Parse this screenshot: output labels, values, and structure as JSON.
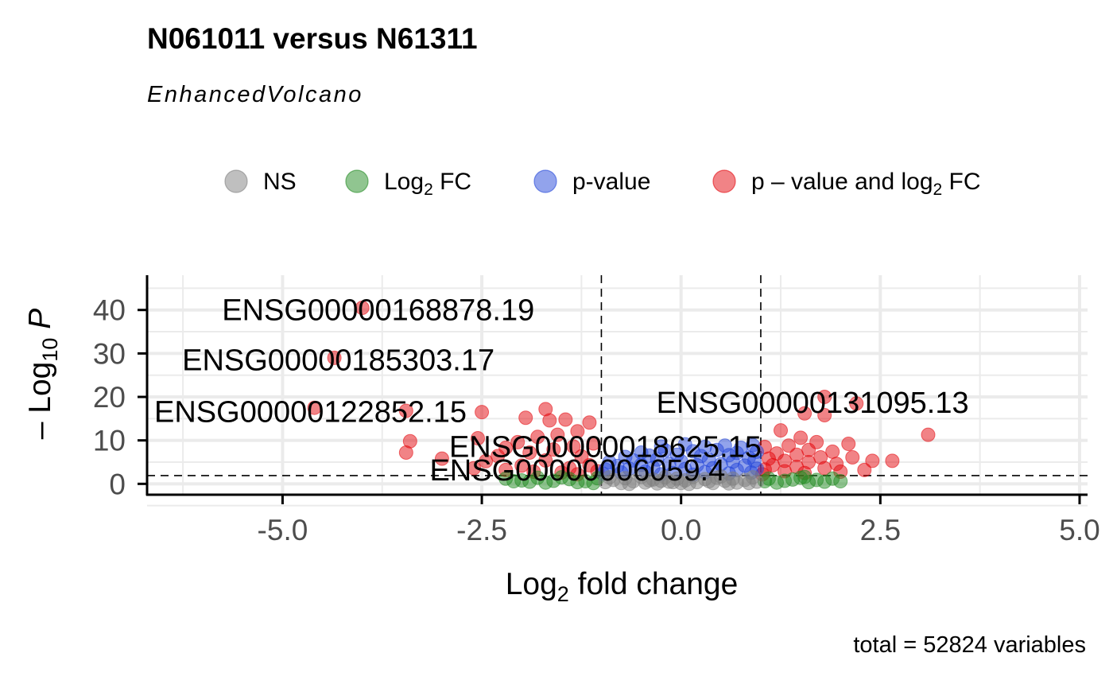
{
  "chart_data": {
    "type": "scatter",
    "title": "N061011 versus N61311",
    "subtitle": "EnhancedVolcano",
    "caption": "total = 52824 variables",
    "xlabel": {
      "base": "Log",
      "sub": "2",
      "rest": " fold change"
    },
    "ylabel": {
      "prefix": "– Log",
      "sub": "10",
      "rest": " P"
    },
    "xlim": [
      -6.7,
      5.1
    ],
    "ylim": [
      -2.5,
      48
    ],
    "x_ticks": [
      -5.0,
      -2.5,
      0.0,
      2.5,
      5.0
    ],
    "x_tick_labels": [
      "-5.0",
      "-2.5",
      "0.0",
      "2.5",
      "5.0"
    ],
    "y_ticks": [
      0,
      10,
      20,
      30,
      40
    ],
    "y_tick_labels": [
      "0",
      "10",
      "20",
      "30",
      "40"
    ],
    "fc_cutoff": 1.0,
    "p_cutoff_log10": 1.9,
    "grid": true,
    "legend_position": "top",
    "colors": {
      "NS": "#808080",
      "Log2FC": "#228B22",
      "pvalue": "#2547D9",
      "both": "#E3070D"
    },
    "legend": [
      {
        "key": "NS",
        "label": "NS",
        "color": "#808080"
      },
      {
        "key": "Log2FC",
        "label": "Log",
        "sub": "2",
        "rest": " FC",
        "color": "#228B22"
      },
      {
        "key": "pvalue",
        "label": "p-value",
        "color": "#2547D9"
      },
      {
        "key": "both",
        "label": "p – value and log",
        "sub": "2",
        "rest": " FC",
        "color": "#E3070D"
      }
    ],
    "series": [
      {
        "key": "both",
        "points": [
          [
            -4.0,
            40.5
          ],
          [
            -4.35,
            29
          ],
          [
            -4.6,
            17.5
          ],
          [
            -3.45,
            16.8
          ],
          [
            -2.5,
            16.5
          ],
          [
            -3.4,
            9.8
          ],
          [
            -3.45,
            7.2
          ],
          [
            -3.0,
            5.8
          ],
          [
            -2.55,
            10.5
          ],
          [
            -1.7,
            17.2
          ],
          [
            -1.65,
            14.6
          ],
          [
            -1.95,
            15.2
          ],
          [
            -1.45,
            14.8
          ],
          [
            -1.15,
            14.1
          ],
          [
            -1.3,
            12.1
          ],
          [
            -1.55,
            11.3
          ],
          [
            -1.8,
            10.8
          ],
          [
            -2.05,
            9.6
          ],
          [
            -2.2,
            8.3
          ],
          [
            -1.1,
            9.3
          ],
          [
            -1.35,
            8.6
          ],
          [
            -1.6,
            7.9
          ],
          [
            -1.9,
            7.2
          ],
          [
            -2.3,
            6.4
          ],
          [
            -2.45,
            5.2
          ],
          [
            -1.25,
            6.3
          ],
          [
            -1.7,
            5.4
          ],
          [
            -2.0,
            4.2
          ],
          [
            -1.4,
            3.6
          ],
          [
            -1.85,
            2.8
          ],
          [
            -2.2,
            3.2
          ],
          [
            -1.15,
            4.3
          ],
          [
            -1.5,
            2.6
          ],
          [
            -2.6,
            3.6
          ],
          [
            -1.05,
            2.9
          ],
          [
            -1.3,
            2.2
          ],
          [
            1.8,
            20.0
          ],
          [
            2.2,
            18.5
          ],
          [
            1.55,
            16.2
          ],
          [
            1.8,
            15.8
          ],
          [
            3.1,
            11.3
          ],
          [
            1.25,
            12.3
          ],
          [
            1.5,
            10.6
          ],
          [
            1.7,
            9.6
          ],
          [
            2.1,
            9.2
          ],
          [
            1.35,
            8.8
          ],
          [
            1.05,
            8.5
          ],
          [
            1.6,
            7.8
          ],
          [
            1.9,
            7.4
          ],
          [
            1.2,
            7.0
          ],
          [
            1.45,
            6.7
          ],
          [
            1.75,
            6.1
          ],
          [
            2.15,
            6.1
          ],
          [
            1.1,
            5.8
          ],
          [
            1.3,
            5.3
          ],
          [
            1.6,
            5.0
          ],
          [
            2.4,
            5.3
          ],
          [
            2.65,
            5.3
          ],
          [
            1.95,
            4.6
          ],
          [
            1.15,
            4.3
          ],
          [
            1.45,
            3.9
          ],
          [
            1.8,
            3.6
          ],
          [
            2.3,
            3.2
          ],
          [
            1.05,
            3.3
          ],
          [
            1.3,
            2.9
          ],
          [
            2.0,
            2.8
          ],
          [
            1.55,
            2.5
          ],
          [
            1.02,
            2.2
          ]
        ]
      },
      {
        "key": "pvalue",
        "points": [
          [
            -0.25,
            8.6
          ],
          [
            0.05,
            9.1
          ],
          [
            0.3,
            8.5
          ],
          [
            0.55,
            8.8
          ],
          [
            0.75,
            8.3
          ],
          [
            0.9,
            8.9
          ],
          [
            -0.5,
            7.2
          ],
          [
            -0.2,
            7.7
          ],
          [
            0.15,
            7.5
          ],
          [
            0.45,
            7.8
          ],
          [
            0.7,
            7.1
          ],
          [
            0.95,
            7.4
          ],
          [
            -0.7,
            6.2
          ],
          [
            -0.4,
            6.5
          ],
          [
            -0.05,
            6.7
          ],
          [
            0.25,
            6.4
          ],
          [
            0.6,
            6.6
          ],
          [
            0.85,
            6.0
          ],
          [
            -0.9,
            5.0
          ],
          [
            -0.6,
            5.4
          ],
          [
            -0.3,
            5.6
          ],
          [
            0.0,
            5.2
          ],
          [
            0.35,
            5.5
          ],
          [
            0.65,
            5.1
          ],
          [
            0.92,
            5.3
          ],
          [
            -0.8,
            4.1
          ],
          [
            -0.5,
            4.4
          ],
          [
            -0.15,
            4.6
          ],
          [
            0.2,
            4.3
          ],
          [
            0.5,
            4.5
          ],
          [
            0.8,
            4.2
          ],
          [
            -0.95,
            3.3
          ],
          [
            -0.65,
            3.5
          ],
          [
            -0.35,
            3.7
          ],
          [
            0.05,
            3.4
          ],
          [
            0.4,
            3.6
          ],
          [
            0.7,
            3.2
          ],
          [
            0.95,
            3.5
          ],
          [
            -0.75,
            2.6
          ],
          [
            -0.45,
            2.8
          ],
          [
            -0.1,
            2.5
          ],
          [
            0.3,
            2.7
          ],
          [
            0.6,
            2.4
          ],
          [
            0.88,
            2.6
          ],
          [
            -0.98,
            2.3
          ],
          [
            -0.25,
            2.2
          ],
          [
            0.15,
            2.1
          ]
        ]
      },
      {
        "key": "Log2FC",
        "points": [
          [
            -2.2,
            1.2
          ],
          [
            -2.0,
            0.8
          ],
          [
            -1.8,
            1.4
          ],
          [
            -1.6,
            0.7
          ],
          [
            -1.4,
            1.1
          ],
          [
            -1.2,
            0.6
          ],
          [
            -1.05,
            1.3
          ],
          [
            -1.3,
            0.4
          ],
          [
            -1.7,
            0.3
          ],
          [
            -1.9,
            0.5
          ],
          [
            -2.1,
            0.6
          ],
          [
            -1.5,
            1.5
          ],
          [
            -1.1,
            0.2
          ],
          [
            1.1,
            1.2
          ],
          [
            1.3,
            0.7
          ],
          [
            1.5,
            1.4
          ],
          [
            1.7,
            0.9
          ],
          [
            1.9,
            1.2
          ],
          [
            2.0,
            0.6
          ],
          [
            1.2,
            0.3
          ],
          [
            1.4,
            1.0
          ],
          [
            1.6,
            0.4
          ],
          [
            1.8,
            0.5
          ],
          [
            1.05,
            0.6
          ],
          [
            1.55,
            1.6
          ]
        ]
      },
      {
        "key": "NS",
        "points": [
          [
            -0.95,
            0.4
          ],
          [
            -0.85,
            0.9
          ],
          [
            -0.75,
            0.2
          ],
          [
            -0.7,
            1.3
          ],
          [
            -0.6,
            0.6
          ],
          [
            -0.5,
            1.6
          ],
          [
            -0.45,
            0.3
          ],
          [
            -0.35,
            1.0
          ],
          [
            -0.3,
            0.1
          ],
          [
            -0.2,
            1.5
          ],
          [
            -0.15,
            0.5
          ],
          [
            -0.05,
            1.2
          ],
          [
            0.0,
            0.2
          ],
          [
            0.05,
            0.8
          ],
          [
            0.15,
            1.6
          ],
          [
            0.2,
            0.4
          ],
          [
            0.3,
            1.1
          ],
          [
            0.4,
            0.2
          ],
          [
            0.45,
            1.4
          ],
          [
            0.55,
            0.7
          ],
          [
            0.65,
            1.2
          ],
          [
            0.7,
            0.3
          ],
          [
            0.8,
            0.9
          ],
          [
            0.9,
            1.5
          ],
          [
            0.95,
            0.5
          ],
          [
            -0.9,
            1.5
          ],
          [
            -0.4,
            0.8
          ],
          [
            0.1,
            0.0
          ],
          [
            0.6,
            0.1
          ],
          [
            -0.65,
            0.0
          ],
          [
            0.35,
            0.6
          ],
          [
            -0.1,
            0.4
          ],
          [
            0.85,
            0.2
          ],
          [
            -0.25,
            0.7
          ],
          [
            0.5,
            1.7
          ]
        ]
      }
    ],
    "labels": [
      {
        "text": "ENSG00000168878.19",
        "x": -4.0,
        "y": 40.5,
        "anchor_x": -3.8,
        "anchor_y": 40.0
      },
      {
        "text": "ENSG00000185303.17",
        "x": -4.35,
        "y": 29.0,
        "anchor_x": -4.3,
        "anchor_y": 28.5
      },
      {
        "text": "ENSG00000122852.15",
        "x": -4.6,
        "y": 17.5,
        "anchor_x": -4.65,
        "anchor_y": 16.6
      },
      {
        "text": "ENSG00000131095.13",
        "x": 1.8,
        "y": 20.0,
        "anchor_x": 1.65,
        "anchor_y": 18.7
      },
      {
        "text": "ENSG00000018625.15",
        "x": -0.5,
        "y": 8.0,
        "anchor_x": -0.95,
        "anchor_y": 8.6
      },
      {
        "text": "ENSG00000006059.4",
        "x": -0.4,
        "y": 3.0,
        "anchor_x": -1.3,
        "anchor_y": 3.2
      }
    ]
  }
}
